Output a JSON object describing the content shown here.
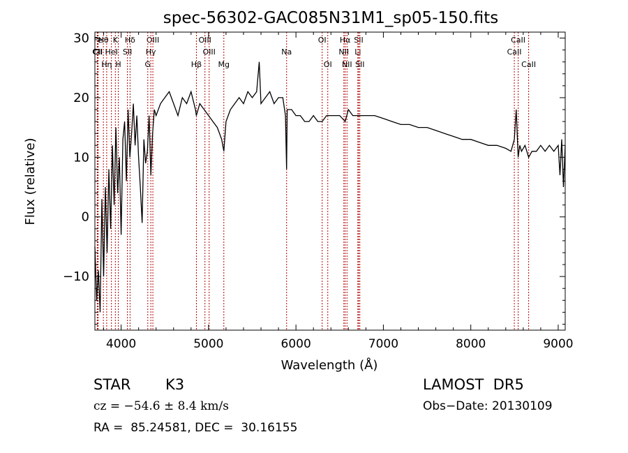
{
  "chart_data": {
    "type": "line",
    "title": "spec-56302-GAC085N31M1_sp05-150.fits",
    "xlabel": "Wavelength (Å)",
    "ylabel": "Flux (relative)",
    "xlim": [
      3700,
      9080
    ],
    "ylim": [
      -19,
      31
    ],
    "xticks": [
      4000,
      5000,
      6000,
      7000,
      8000,
      9000
    ],
    "yticks": [
      -10,
      0,
      10,
      20,
      30
    ],
    "grid": false,
    "line_color": "#000000",
    "marker_color": "#b00000",
    "x": [
      3700,
      3720,
      3740,
      3760,
      3780,
      3800,
      3820,
      3840,
      3860,
      3880,
      3900,
      3920,
      3940,
      3960,
      3980,
      4000,
      4020,
      4040,
      4060,
      4080,
      4100,
      4120,
      4140,
      4160,
      4180,
      4200,
      4220,
      4240,
      4260,
      4280,
      4300,
      4320,
      4340,
      4360,
      4380,
      4400,
      4450,
      4500,
      4550,
      4600,
      4650,
      4700,
      4750,
      4800,
      4850,
      4861,
      4900,
      4950,
      5000,
      5050,
      5100,
      5150,
      5175,
      5200,
      5250,
      5300,
      5350,
      5400,
      5450,
      5500,
      5550,
      5580,
      5600,
      5650,
      5700,
      5750,
      5800,
      5850,
      5880,
      5893,
      5900,
      5950,
      6000,
      6050,
      6100,
      6150,
      6200,
      6250,
      6300,
      6350,
      6400,
      6450,
      6500,
      6563,
      6600,
      6650,
      6700,
      6750,
      6800,
      6900,
      7000,
      7100,
      7200,
      7300,
      7400,
      7500,
      7600,
      7700,
      7800,
      7900,
      8000,
      8100,
      8200,
      8300,
      8400,
      8460,
      8498,
      8520,
      8542,
      8560,
      8580,
      8620,
      8662,
      8700,
      8750,
      8800,
      8850,
      8900,
      8950,
      9000,
      9020,
      9040,
      9060,
      9080
    ],
    "y": [
      -5,
      -14,
      -9,
      -16,
      3,
      -10,
      5,
      -6,
      8,
      -2,
      12,
      2,
      15,
      4,
      10,
      -3,
      13,
      16,
      6,
      18,
      10,
      14,
      19,
      12,
      17,
      10,
      5,
      -1,
      13,
      9,
      11,
      17,
      7,
      14,
      18,
      17,
      19,
      20,
      21,
      19,
      17,
      20,
      19,
      21,
      18,
      17,
      19,
      18,
      17,
      16,
      15,
      13,
      11,
      16,
      18,
      19,
      20,
      19,
      21,
      20,
      21,
      26,
      19,
      20,
      21,
      19,
      20,
      20,
      17,
      8,
      18,
      18,
      17,
      17,
      16,
      16,
      17,
      16,
      16,
      17,
      17,
      17,
      17,
      16,
      18,
      17,
      17,
      17,
      17,
      17,
      16.5,
      16,
      15.5,
      15.5,
      15,
      15,
      14.5,
      14,
      13.5,
      13,
      13,
      12.5,
      12,
      12,
      11.5,
      11,
      13,
      18,
      10,
      12,
      11,
      12,
      10,
      11,
      11,
      12,
      11,
      12,
      11,
      12,
      7,
      13,
      5,
      12
    ],
    "lines": [
      {
        "name": "Fe",
        "x": 3737
      },
      {
        "name": "Hθ",
        "x": 3797
      },
      {
        "name": "K",
        "x": 3934
      },
      {
        "name": "Hδ",
        "x": 4102
      },
      {
        "name": "OIII",
        "x": 4363
      },
      {
        "name": "OIII",
        "x": 4959
      },
      {
        "name": "OI",
        "x": 6300
      },
      {
        "name": "Hα",
        "x": 6563
      },
      {
        "name": "SII",
        "x": 6717
      },
      {
        "name": "CaII",
        "x": 8542
      },
      {
        "name": "CII",
        "x": 3727
      },
      {
        "name": "HeI",
        "x": 3889
      },
      {
        "name": "SII",
        "x": 4072
      },
      {
        "name": "Hγ",
        "x": 4340
      },
      {
        "name": "OIII",
        "x": 5007
      },
      {
        "name": "Na",
        "x": 5893
      },
      {
        "name": "NII",
        "x": 6548
      },
      {
        "name": "Li",
        "x": 6708
      },
      {
        "name": "CaII",
        "x": 8498
      },
      {
        "name": "CII",
        "x": 3733
      },
      {
        "name": "Hη",
        "x": 3835
      },
      {
        "name": "H",
        "x": 3968
      },
      {
        "name": "G",
        "x": 4305
      },
      {
        "name": "Hβ",
        "x": 4861
      },
      {
        "name": "Mg",
        "x": 5175
      },
      {
        "name": "OI",
        "x": 6364
      },
      {
        "name": "NII",
        "x": 6584
      },
      {
        "name": "SII",
        "x": 6731
      },
      {
        "name": "CaII",
        "x": 8662
      }
    ]
  },
  "info": {
    "object_class": "STAR",
    "subclass": "K3",
    "survey": "LAMOST  DR5",
    "velocity": "cz = −54.6 ± 8.4 km/s",
    "obs_date": "Obs−Date: 20130109",
    "coords": "RA =  85.24581, DEC =  30.16155"
  }
}
